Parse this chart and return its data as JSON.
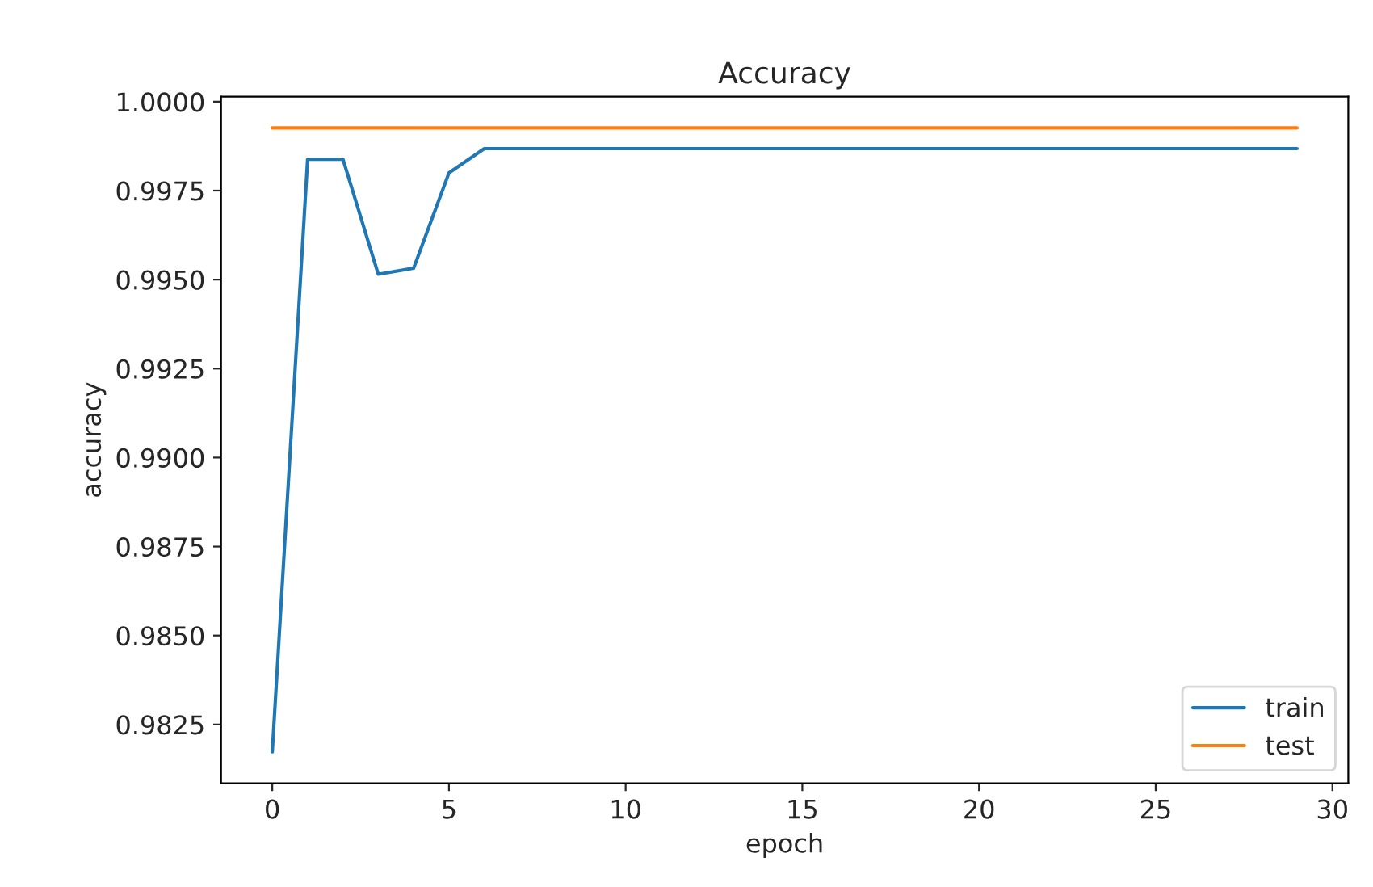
{
  "chart_data": {
    "type": "line",
    "title": "Accuracy",
    "xlabel": "epoch",
    "ylabel": "accuracy",
    "x": [
      0,
      1,
      2,
      3,
      4,
      5,
      6,
      7,
      8,
      9,
      10,
      11,
      12,
      13,
      14,
      15,
      16,
      17,
      18,
      19,
      20,
      21,
      22,
      23,
      24,
      25,
      26,
      27,
      28,
      29
    ],
    "series": [
      {
        "name": "train",
        "color": "#1f77b4",
        "values": [
          0.98173,
          0.99838,
          0.99838,
          0.99515,
          0.99532,
          0.998,
          0.99868,
          0.99868,
          0.99868,
          0.99868,
          0.99868,
          0.99868,
          0.99868,
          0.99868,
          0.99868,
          0.99868,
          0.99868,
          0.99868,
          0.99868,
          0.99868,
          0.99868,
          0.99868,
          0.99868,
          0.99868,
          0.99868,
          0.99868,
          0.99868,
          0.99868,
          0.99868,
          0.99868
        ]
      },
      {
        "name": "test",
        "color": "#ff7f0e",
        "values": [
          0.99926,
          0.99926,
          0.99926,
          0.99926,
          0.99926,
          0.99926,
          0.99926,
          0.99926,
          0.99926,
          0.99926,
          0.99926,
          0.99926,
          0.99926,
          0.99926,
          0.99926,
          0.99926,
          0.99926,
          0.99926,
          0.99926,
          0.99926,
          0.99926,
          0.99926,
          0.99926,
          0.99926,
          0.99926,
          0.99926,
          0.99926,
          0.99926,
          0.99926,
          0.99926
        ]
      }
    ],
    "xlim": [
      -1.45,
      30.45
    ],
    "ylim": [
      0.98085,
      1.00014
    ],
    "xticks": [
      0,
      5,
      10,
      15,
      20,
      25,
      30
    ],
    "yticks": [
      {
        "value": 0.9825,
        "label": "0.9825"
      },
      {
        "value": 0.985,
        "label": "0.9850"
      },
      {
        "value": 0.9875,
        "label": "0.9875"
      },
      {
        "value": 0.99,
        "label": "0.9900"
      },
      {
        "value": 0.9925,
        "label": "0.9925"
      },
      {
        "value": 0.995,
        "label": "0.9950"
      },
      {
        "value": 0.9975,
        "label": "0.9975"
      },
      {
        "value": 1.0,
        "label": "1.0000"
      }
    ],
    "grid": false,
    "legend": "bottom right",
    "marker": "none",
    "line_style": "solid"
  }
}
